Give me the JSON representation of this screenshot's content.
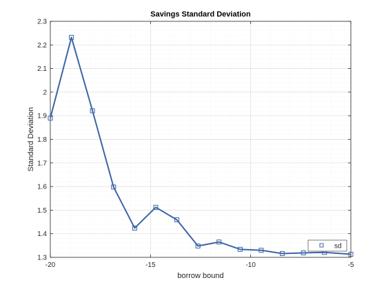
{
  "chart_data": {
    "type": "line",
    "title": "Savings Standard Deviation",
    "xlabel": "borrow bound",
    "ylabel": "Standard Deviation",
    "xlim": [
      -20,
      -5
    ],
    "ylim": [
      1.3,
      2.3
    ],
    "xticks": [
      -20,
      -15,
      -10,
      -5
    ],
    "xtick_labels": [
      "-20",
      "-15",
      "-10",
      "-5"
    ],
    "yticks": [
      1.3,
      1.4,
      1.5,
      1.6,
      1.7,
      1.8,
      1.9,
      2.0,
      2.1,
      2.2,
      2.3
    ],
    "ytick_labels": [
      "1.3",
      "1.4",
      "1.5",
      "1.6",
      "1.7",
      "1.8",
      "1.9",
      "2",
      "2.1",
      "2.2",
      "2.3"
    ],
    "grid": true,
    "minor_grid": true,
    "legend_position": "bottom-right",
    "series": [
      {
        "name": "sd",
        "color": "#3a64a6",
        "marker": "square",
        "x": [
          -20,
          -18.947,
          -17.895,
          -16.842,
          -15.789,
          -14.737,
          -13.684,
          -12.632,
          -11.579,
          -10.526,
          -9.474,
          -8.421,
          -7.368,
          -6.316,
          -5
        ],
        "y": [
          1.89,
          2.232,
          1.921,
          1.598,
          1.424,
          1.512,
          1.459,
          1.348,
          1.365,
          1.334,
          1.33,
          1.316,
          1.319,
          1.321,
          1.313
        ]
      }
    ]
  }
}
